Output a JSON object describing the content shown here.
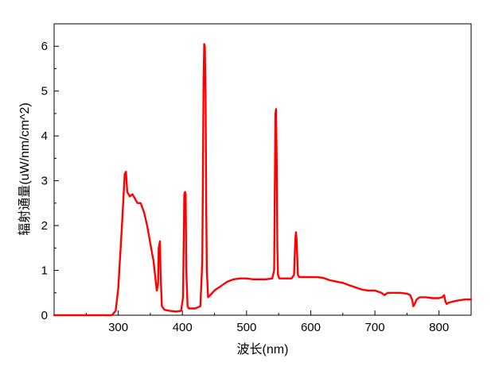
{
  "chart_data": {
    "type": "line",
    "title": "",
    "xlabel": "波长(nm)",
    "ylabel": "辐射通量(uW/nm/cm^2)",
    "xlim": [
      200,
      850
    ],
    "ylim": [
      0,
      6.5
    ],
    "xticks": [
      300,
      400,
      500,
      600,
      700,
      800
    ],
    "yticks": [
      0,
      1,
      2,
      3,
      4,
      5,
      6
    ],
    "grid": false,
    "legend": "none",
    "series": [
      {
        "color": "#ff0000",
        "x": [
          200,
          290,
          296,
          300,
          305,
          308,
          310,
          312,
          314,
          318,
          322,
          326,
          330,
          335,
          340,
          345,
          350,
          355,
          358,
          360,
          362,
          363,
          365,
          366,
          368,
          372,
          380,
          390,
          398,
          401,
          403,
          404,
          405,
          406,
          408,
          410,
          420,
          428,
          431,
          433,
          434,
          435,
          436,
          437,
          438,
          440,
          450,
          460,
          470,
          480,
          490,
          500,
          510,
          520,
          530,
          540,
          543,
          545,
          546,
          547,
          548,
          549,
          551,
          555,
          560,
          570,
          574,
          576,
          577,
          578,
          580,
          582,
          590,
          600,
          610,
          620,
          630,
          640,
          650,
          660,
          670,
          680,
          690,
          700,
          710,
          715,
          720,
          730,
          740,
          750,
          755,
          758,
          760,
          762,
          765,
          770,
          780,
          790,
          800,
          805,
          808,
          810,
          812,
          815,
          820,
          830,
          840,
          850
        ],
        "y": [
          0,
          0,
          0.1,
          0.6,
          1.8,
          2.6,
          3.15,
          3.2,
          2.75,
          2.65,
          2.7,
          2.6,
          2.5,
          2.5,
          2.3,
          2.0,
          1.6,
          1.2,
          0.8,
          0.55,
          0.7,
          1.5,
          1.65,
          0.9,
          0.2,
          0.12,
          0.1,
          0.08,
          0.1,
          0.4,
          2.7,
          2.75,
          2.7,
          1.0,
          0.2,
          0.15,
          0.15,
          0.2,
          1.2,
          5.2,
          6.05,
          6.0,
          5.0,
          2.5,
          1.0,
          0.4,
          0.55,
          0.65,
          0.75,
          0.8,
          0.82,
          0.82,
          0.8,
          0.8,
          0.8,
          0.82,
          1.0,
          4.5,
          4.6,
          3.5,
          1.5,
          0.9,
          0.82,
          0.82,
          0.82,
          0.82,
          0.9,
          1.7,
          1.85,
          1.7,
          0.9,
          0.85,
          0.85,
          0.85,
          0.85,
          0.83,
          0.78,
          0.75,
          0.72,
          0.67,
          0.62,
          0.57,
          0.55,
          0.55,
          0.5,
          0.45,
          0.5,
          0.5,
          0.5,
          0.48,
          0.45,
          0.35,
          0.2,
          0.25,
          0.35,
          0.4,
          0.4,
          0.38,
          0.38,
          0.4,
          0.45,
          0.3,
          0.25,
          0.28,
          0.3,
          0.33,
          0.35,
          0.35
        ]
      }
    ]
  }
}
